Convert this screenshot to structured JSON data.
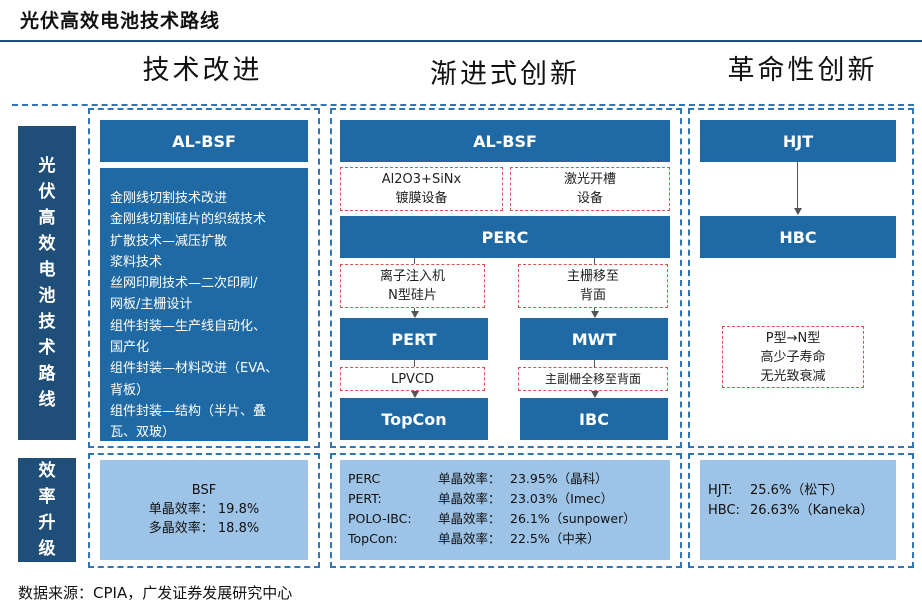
{
  "title": "光伏高效电池技术路线",
  "columns": [
    "技术改进",
    "渐进式创新",
    "革命性创新"
  ],
  "sidebar": {
    "route": "光伏高效电池技术路线",
    "efficiency": "效率升级"
  },
  "col1": {
    "header": "AL-BSF",
    "items": [
      "金刚线切割技术改进",
      "金刚线切割硅片的织绒技术",
      "扩散技术—减压扩散",
      "浆料技术",
      "丝网印刷技术—二次印刷/",
      "网板/主栅设计",
      "组件封装—生产线自动化、",
      "国产化",
      "组件封装—材料改进（EVA、",
      "背板）",
      "组件封装—结构（半片、叠",
      "瓦、双玻）"
    ],
    "eff": {
      "name": "BSF",
      "mono": "单晶效率： 19.8%",
      "multi": "多晶效率： 18.8%"
    }
  },
  "col2": {
    "top": "AL-BSF",
    "note_left_1": "Al2O3+SiNx",
    "note_left_2": "镀膜设备",
    "note_right_1": "激光开槽",
    "note_right_2": "设备",
    "perc": "PERC",
    "note_ion_1": "离子注入机",
    "note_ion_2": "N型硅片",
    "note_grid_1": "主栅移至",
    "note_grid_2": "背面",
    "pert": "PERT",
    "mwt": "MWT",
    "note_lpvcd": "LPVCD",
    "note_sub": "主副栅全移至背面",
    "topcon": "TopCon",
    "ibc": "IBC",
    "eff": [
      {
        "name": "PERC",
        "label": "单晶效率：",
        "value": "23.95%（晶科）"
      },
      {
        "name": "PERT:",
        "label": "单晶效率：",
        "value": "23.03%（Imec）"
      },
      {
        "name": "POLO-IBC:",
        "label": "单晶效率：",
        "value": "26.1%（sunpower）"
      },
      {
        "name": "TopCon:",
        "label": "单晶效率：",
        "value": "22.5%（中来）"
      }
    ]
  },
  "col3": {
    "hjt": "HJT",
    "hbc": "HBC",
    "note_1": "P型→N型",
    "note_2": "高少子寿命",
    "note_3": "无光致衰减",
    "eff": [
      {
        "name": "HJT:",
        "value": "25.6%（松下）"
      },
      {
        "name": "HBC:",
        "value": "26.63%（Kaneka）"
      }
    ]
  },
  "footer": "数据来源：CPIA，广发证券发展研究中心"
}
